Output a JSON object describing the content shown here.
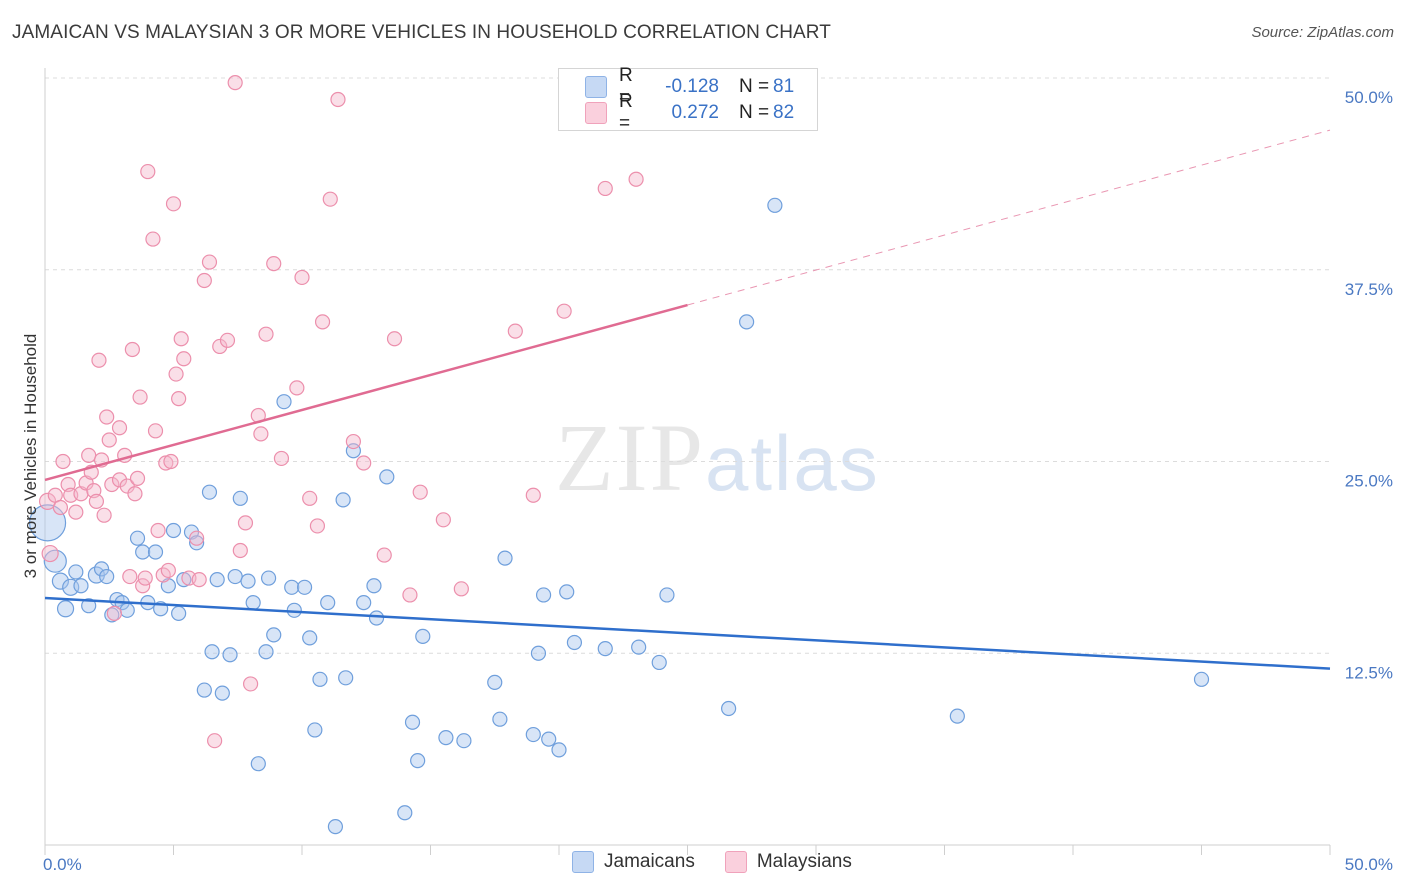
{
  "title": "JAMAICAN VS MALAYSIAN 3 OR MORE VEHICLES IN HOUSEHOLD CORRELATION CHART",
  "source": "Source: ZipAtlas.com",
  "watermark": {
    "zip": "ZIP",
    "atlas": "atlas"
  },
  "legend": {
    "rows": [
      {
        "r_label": "R =",
        "r_value": "-0.128",
        "n_label": "N =",
        "n_value": "81",
        "color": "#a9c6ee"
      },
      {
        "r_label": "R =",
        "r_value": "0.272",
        "n_label": "N =",
        "n_value": "82",
        "color": "#f5b8cb"
      }
    ]
  },
  "bottom_legend": [
    {
      "label": "Jamaicans",
      "color": "#a9c6ee"
    },
    {
      "label": "Malaysians",
      "color": "#f5b8cb"
    }
  ],
  "chart_data": {
    "type": "scatter",
    "title": "JAMAICAN VS MALAYSIAN 3 OR MORE VEHICLES IN HOUSEHOLD CORRELATION CHART",
    "xlabel": "",
    "ylabel": "3 or more Vehicles in Household",
    "xlim": [
      0,
      50
    ],
    "ylim": [
      0,
      50
    ],
    "x_tick_labels": [
      "0.0%",
      "50.0%"
    ],
    "y_ticks": [
      12.5,
      25.0,
      37.5,
      50.0
    ],
    "y_tick_labels": [
      "12.5%",
      "25.0%",
      "37.5%",
      "50.0%"
    ],
    "grid": true,
    "legend_position": "top-center",
    "series": [
      {
        "name": "Jamaicans",
        "color": "#a9c6ee",
        "stroke": "#6f9fdc",
        "trend": {
          "x": [
            0,
            50
          ],
          "y": [
            16.1,
            11.5
          ],
          "color": "#2f6fcc",
          "dashed_from": null
        },
        "points": [
          [
            0.1,
            21.0,
            34
          ],
          [
            0.4,
            18.5,
            20
          ],
          [
            0.6,
            17.2,
            14
          ],
          [
            0.8,
            15.4,
            14
          ],
          [
            1.0,
            16.8,
            14
          ],
          [
            1.2,
            17.8,
            12
          ],
          [
            1.4,
            16.9,
            12
          ],
          [
            1.7,
            15.6,
            12
          ],
          [
            2.0,
            17.6,
            14
          ],
          [
            2.2,
            18.0,
            12
          ],
          [
            2.4,
            17.5,
            12
          ],
          [
            2.6,
            15.0,
            12
          ],
          [
            2.8,
            16.0,
            12
          ],
          [
            3.0,
            15.8,
            12
          ],
          [
            3.2,
            15.3,
            12
          ],
          [
            3.6,
            20.0,
            12
          ],
          [
            3.8,
            19.1,
            12
          ],
          [
            4.0,
            15.8,
            12
          ],
          [
            4.3,
            19.1,
            12
          ],
          [
            4.5,
            15.4,
            12
          ],
          [
            4.8,
            16.9,
            12
          ],
          [
            5.0,
            20.5,
            12
          ],
          [
            5.2,
            15.1,
            12
          ],
          [
            5.4,
            17.3,
            12
          ],
          [
            5.7,
            20.4,
            12
          ],
          [
            5.9,
            19.7,
            12
          ],
          [
            6.2,
            10.1,
            12
          ],
          [
            6.4,
            23.0,
            12
          ],
          [
            6.5,
            12.6,
            12
          ],
          [
            6.7,
            17.3,
            12
          ],
          [
            6.9,
            9.9,
            12
          ],
          [
            7.2,
            12.4,
            12
          ],
          [
            7.4,
            17.5,
            12
          ],
          [
            7.6,
            22.6,
            12
          ],
          [
            7.9,
            17.2,
            12
          ],
          [
            8.1,
            15.8,
            12
          ],
          [
            8.3,
            5.3,
            12
          ],
          [
            8.6,
            12.6,
            12
          ],
          [
            8.7,
            17.4,
            12
          ],
          [
            8.9,
            13.7,
            12
          ],
          [
            9.3,
            28.9,
            12
          ],
          [
            9.6,
            16.8,
            12
          ],
          [
            9.7,
            15.3,
            12
          ],
          [
            10.1,
            16.8,
            12
          ],
          [
            10.3,
            13.5,
            12
          ],
          [
            10.5,
            7.5,
            12
          ],
          [
            10.7,
            10.8,
            12
          ],
          [
            11.0,
            15.8,
            12
          ],
          [
            11.3,
            1.2,
            12
          ],
          [
            11.6,
            22.5,
            12
          ],
          [
            11.7,
            10.9,
            12
          ],
          [
            12.0,
            25.7,
            12
          ],
          [
            12.4,
            15.8,
            12
          ],
          [
            12.8,
            16.9,
            12
          ],
          [
            12.9,
            14.8,
            12
          ],
          [
            13.3,
            24.0,
            12
          ],
          [
            14.0,
            2.1,
            12
          ],
          [
            14.3,
            8.0,
            12
          ],
          [
            14.5,
            5.5,
            12
          ],
          [
            14.7,
            13.6,
            12
          ],
          [
            15.6,
            7.0,
            12
          ],
          [
            16.3,
            6.8,
            12
          ],
          [
            17.5,
            10.6,
            12
          ],
          [
            17.7,
            8.2,
            12
          ],
          [
            17.9,
            18.7,
            12
          ],
          [
            19.0,
            7.2,
            12
          ],
          [
            19.2,
            12.5,
            12
          ],
          [
            19.4,
            16.3,
            12
          ],
          [
            19.6,
            6.9,
            12
          ],
          [
            20.0,
            6.2,
            12
          ],
          [
            20.3,
            16.5,
            12
          ],
          [
            20.6,
            13.2,
            12
          ],
          [
            21.8,
            12.8,
            12
          ],
          [
            23.1,
            12.9,
            12
          ],
          [
            23.9,
            11.9,
            12
          ],
          [
            24.2,
            16.3,
            12
          ],
          [
            26.6,
            8.9,
            12
          ],
          [
            27.3,
            34.1,
            12
          ],
          [
            28.4,
            41.7,
            12
          ],
          [
            35.5,
            8.4,
            12
          ],
          [
            45.0,
            10.8,
            12
          ]
        ]
      },
      {
        "name": "Malaysians",
        "color": "#f5b8cb",
        "stroke": "#ec8fac",
        "trend": {
          "x": [
            0,
            50
          ],
          "y": [
            23.8,
            46.6
          ],
          "color": "#e06b92",
          "solid_until_x": 25
        },
        "points": [
          [
            0.1,
            22.4,
            14
          ],
          [
            0.2,
            19.0,
            14
          ],
          [
            0.4,
            22.8,
            12
          ],
          [
            0.6,
            22.0,
            12
          ],
          [
            0.7,
            25.0,
            12
          ],
          [
            0.9,
            23.5,
            12
          ],
          [
            1.0,
            22.8,
            12
          ],
          [
            1.2,
            21.7,
            12
          ],
          [
            1.4,
            22.9,
            12
          ],
          [
            1.6,
            23.6,
            12
          ],
          [
            1.7,
            25.4,
            12
          ],
          [
            1.8,
            24.3,
            12
          ],
          [
            1.9,
            23.1,
            12
          ],
          [
            2.0,
            22.4,
            12
          ],
          [
            2.1,
            31.6,
            12
          ],
          [
            2.2,
            25.1,
            12
          ],
          [
            2.3,
            21.5,
            12
          ],
          [
            2.4,
            27.9,
            12
          ],
          [
            2.5,
            26.4,
            12
          ],
          [
            2.6,
            23.5,
            12
          ],
          [
            2.7,
            15.1,
            12
          ],
          [
            2.9,
            23.8,
            12
          ],
          [
            2.9,
            27.2,
            12
          ],
          [
            3.1,
            25.4,
            12
          ],
          [
            3.2,
            23.4,
            12
          ],
          [
            3.3,
            17.5,
            12
          ],
          [
            3.4,
            32.3,
            12
          ],
          [
            3.5,
            22.9,
            12
          ],
          [
            3.6,
            23.9,
            12
          ],
          [
            3.7,
            29.2,
            12
          ],
          [
            3.8,
            16.9,
            12
          ],
          [
            3.9,
            17.4,
            12
          ],
          [
            4.0,
            43.9,
            12
          ],
          [
            4.2,
            39.5,
            12
          ],
          [
            4.3,
            27.0,
            12
          ],
          [
            4.4,
            20.5,
            12
          ],
          [
            4.6,
            17.6,
            12
          ],
          [
            4.7,
            24.9,
            12
          ],
          [
            4.8,
            17.9,
            12
          ],
          [
            4.9,
            25.0,
            12
          ],
          [
            5.0,
            41.8,
            12
          ],
          [
            5.1,
            30.7,
            12
          ],
          [
            5.2,
            29.1,
            12
          ],
          [
            5.3,
            33.0,
            12
          ],
          [
            5.4,
            31.7,
            12
          ],
          [
            5.6,
            17.4,
            12
          ],
          [
            5.9,
            20.0,
            12
          ],
          [
            6.0,
            17.3,
            12
          ],
          [
            6.2,
            36.8,
            12
          ],
          [
            6.4,
            38.0,
            12
          ],
          [
            6.6,
            6.8,
            12
          ],
          [
            6.8,
            32.5,
            12
          ],
          [
            7.1,
            32.9,
            12
          ],
          [
            7.4,
            49.7,
            12
          ],
          [
            7.6,
            19.2,
            12
          ],
          [
            7.8,
            21.0,
            12
          ],
          [
            8.0,
            10.5,
            12
          ],
          [
            8.3,
            28.0,
            12
          ],
          [
            8.4,
            26.8,
            12
          ],
          [
            8.6,
            33.3,
            12
          ],
          [
            8.9,
            37.9,
            12
          ],
          [
            9.2,
            25.2,
            12
          ],
          [
            9.8,
            29.8,
            12
          ],
          [
            10.0,
            37.0,
            12
          ],
          [
            10.3,
            22.6,
            12
          ],
          [
            10.6,
            20.8,
            12
          ],
          [
            10.8,
            34.1,
            12
          ],
          [
            11.1,
            42.1,
            12
          ],
          [
            11.4,
            48.6,
            12
          ],
          [
            12.0,
            26.3,
            12
          ],
          [
            12.4,
            24.9,
            12
          ],
          [
            13.2,
            18.9,
            12
          ],
          [
            13.6,
            33.0,
            12
          ],
          [
            14.2,
            16.3,
            12
          ],
          [
            14.6,
            23.0,
            12
          ],
          [
            15.5,
            21.2,
            12
          ],
          [
            16.2,
            16.7,
            12
          ],
          [
            18.3,
            33.5,
            12
          ],
          [
            19.0,
            22.8,
            12
          ],
          [
            20.2,
            34.8,
            12
          ],
          [
            21.8,
            42.8,
            12
          ],
          [
            23.0,
            43.4,
            12
          ]
        ]
      }
    ]
  }
}
